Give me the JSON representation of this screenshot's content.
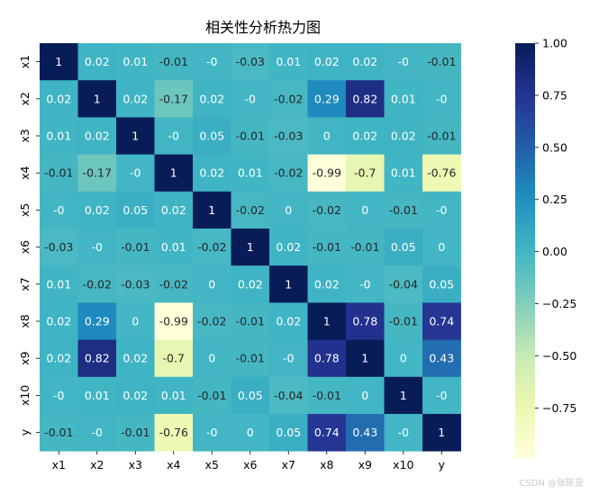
{
  "chart_data": {
    "type": "heatmap",
    "title": "相关性分析热力图",
    "x_labels": [
      "x1",
      "x2",
      "x3",
      "x4",
      "x5",
      "x6",
      "x7",
      "x8",
      "x9",
      "x10",
      "y"
    ],
    "y_labels": [
      "x1",
      "x2",
      "x3",
      "x4",
      "x5",
      "x6",
      "x7",
      "x8",
      "x9",
      "x10",
      "y"
    ],
    "values": [
      [
        1,
        0.02,
        0.01,
        -0.01,
        0,
        -0.03,
        0.01,
        0.02,
        0.02,
        0,
        -0.01
      ],
      [
        0.02,
        1,
        0.02,
        -0.17,
        0.02,
        0,
        -0.02,
        0.29,
        0.82,
        0.01,
        0
      ],
      [
        0.01,
        0.02,
        1,
        0,
        0.05,
        -0.01,
        -0.03,
        0,
        0.02,
        0.02,
        -0.01
      ],
      [
        -0.01,
        -0.17,
        0,
        1,
        0.02,
        0.01,
        -0.02,
        -0.99,
        -0.7,
        0.01,
        -0.76
      ],
      [
        0,
        0.02,
        0.05,
        0.02,
        1,
        -0.02,
        0,
        -0.02,
        0,
        -0.01,
        0
      ],
      [
        -0.03,
        0,
        -0.01,
        0.01,
        -0.02,
        1,
        0.02,
        -0.01,
        -0.01,
        0.05,
        0
      ],
      [
        0.01,
        -0.02,
        -0.03,
        -0.02,
        0,
        0.02,
        1,
        0.02,
        0,
        -0.04,
        0.05
      ],
      [
        0.02,
        0.29,
        0,
        -0.99,
        -0.02,
        -0.01,
        0.02,
        1,
        0.78,
        -0.01,
        0.74
      ],
      [
        0.02,
        0.82,
        0.02,
        -0.7,
        0,
        -0.01,
        0,
        0.78,
        1,
        0,
        0.43
      ],
      [
        0,
        0.01,
        0.02,
        0.01,
        -0.01,
        0.05,
        -0.04,
        -0.01,
        0,
        1,
        0
      ],
      [
        -0.01,
        0,
        -0.01,
        -0.76,
        0,
        0,
        0.05,
        0.74,
        0.43,
        0,
        1
      ]
    ],
    "cell_texts": [
      [
        "1",
        "0.02",
        "0.01",
        "-0.01",
        "-0",
        "-0.03",
        "0.01",
        "0.02",
        "0.02",
        "-0",
        "-0.01"
      ],
      [
        "0.02",
        "1",
        "0.02",
        "-0.17",
        "0.02",
        "-0",
        "-0.02",
        "0.29",
        "0.82",
        "0.01",
        "-0"
      ],
      [
        "0.01",
        "0.02",
        "1",
        "-0",
        "0.05",
        "-0.01",
        "-0.03",
        "0",
        "0.02",
        "0.02",
        "-0.01"
      ],
      [
        "-0.01",
        "-0.17",
        "-0",
        "1",
        "0.02",
        "0.01",
        "-0.02",
        "-0.99",
        "-0.7",
        "0.01",
        "-0.76"
      ],
      [
        "-0",
        "0.02",
        "0.05",
        "0.02",
        "1",
        "-0.02",
        "0",
        "-0.02",
        "0",
        "-0.01",
        "-0"
      ],
      [
        "-0.03",
        "-0",
        "-0.01",
        "0.01",
        "-0.02",
        "1",
        "0.02",
        "-0.01",
        "-0.01",
        "0.05",
        "0"
      ],
      [
        "0.01",
        "-0.02",
        "-0.03",
        "-0.02",
        "0",
        "0.02",
        "1",
        "0.02",
        "-0",
        "-0.04",
        "0.05"
      ],
      [
        "0.02",
        "0.29",
        "0",
        "-0.99",
        "-0.02",
        "-0.01",
        "0.02",
        "1",
        "0.78",
        "-0.01",
        "0.74"
      ],
      [
        "0.02",
        "0.82",
        "0.02",
        "-0.7",
        "0",
        "-0.01",
        "-0",
        "0.78",
        "1",
        "0",
        "0.43"
      ],
      [
        "-0",
        "0.01",
        "0.02",
        "0.01",
        "-0.01",
        "0.05",
        "-0.04",
        "-0.01",
        "0",
        "1",
        "-0"
      ],
      [
        "-0.01",
        "-0",
        "-0.01",
        "-0.76",
        "-0",
        "0",
        "0.05",
        "0.74",
        "0.43",
        "-0",
        "1"
      ]
    ],
    "colorbar": {
      "colormap": "YlGnBu",
      "range": [
        -0.99,
        1
      ],
      "ticks": [
        1.0,
        0.75,
        0.5,
        0.25,
        0.0,
        -0.25,
        -0.5,
        -0.75
      ],
      "tick_labels": [
        "1.00",
        "0.75",
        "0.50",
        "0.25",
        "0.00",
        "−0.25",
        "−0.50",
        "−0.75"
      ]
    }
  },
  "watermark": "CSDN @张陈亚"
}
